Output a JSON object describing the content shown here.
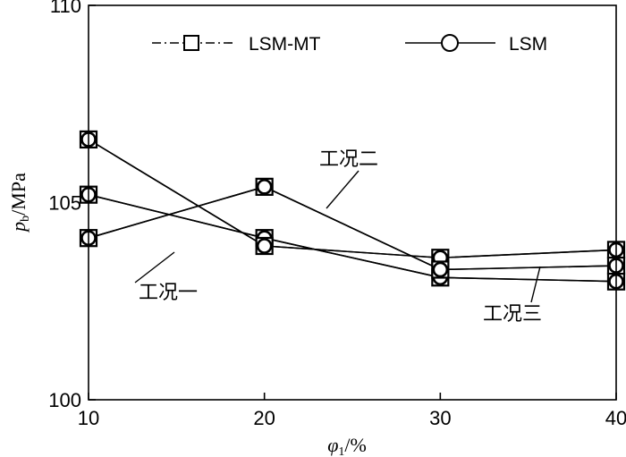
{
  "chart_data": {
    "type": "line",
    "x": [
      10,
      20,
      30,
      40
    ],
    "xlim": [
      10,
      40
    ],
    "ylim": [
      100,
      110
    ],
    "x_ticks": [
      "10",
      "20",
      "30",
      "40"
    ],
    "y_ticks": [
      "100",
      "105",
      "110"
    ],
    "xlabel": {
      "symbol": "φ",
      "sub": "1",
      "unit": "/%"
    },
    "ylabel": {
      "symbol": "p",
      "sub": "b",
      "unit": "/MPa"
    },
    "legend": {
      "placement": "top",
      "entries": [
        "LSM-MT",
        "LSM"
      ]
    },
    "series": [
      {
        "case": "工况一",
        "lsm_mt": [
          105.2,
          104.1,
          103.1,
          103.0
        ],
        "lsm": [
          105.2,
          104.1,
          103.1,
          103.0
        ]
      },
      {
        "case": "工况二",
        "lsm_mt": [
          106.6,
          103.9,
          103.6,
          103.8
        ],
        "lsm": [
          106.6,
          103.9,
          103.6,
          103.8
        ]
      },
      {
        "case": "工况三",
        "lsm_mt": [
          104.1,
          105.4,
          103.3,
          103.4
        ],
        "lsm": [
          104.1,
          105.4,
          103.3,
          103.4
        ]
      }
    ],
    "annotations": [
      {
        "text": "工况一",
        "x": 13.9,
        "y": 104.3
      },
      {
        "text": "工况二",
        "x": 23.5,
        "y": 105.3
      },
      {
        "text": "工况三",
        "x": 35.6,
        "y": 103.2
      }
    ]
  }
}
